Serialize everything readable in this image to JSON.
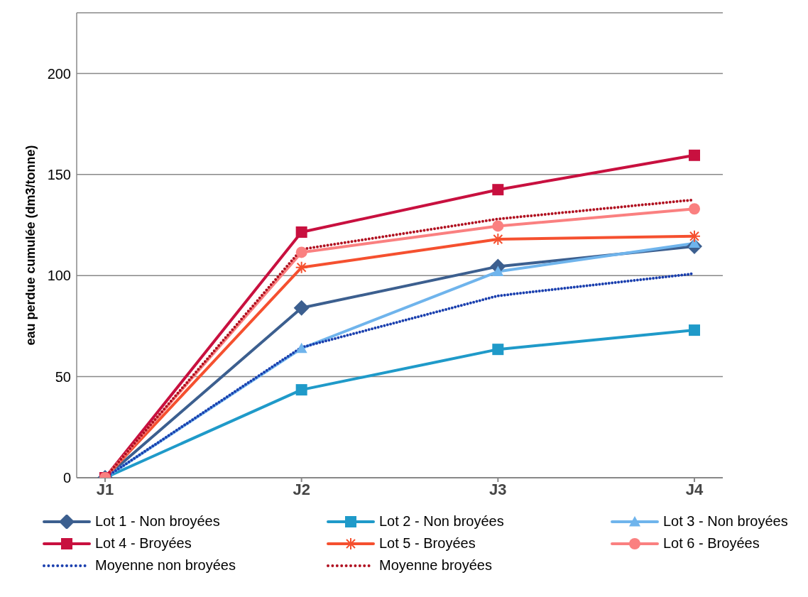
{
  "chart_data": {
    "type": "line",
    "ylabel": "eau perdue cumulée (dm3/tonne)",
    "categories": [
      "J1",
      "J2",
      "J3",
      "J4"
    ],
    "ylim": [
      0,
      230
    ],
    "yticks": [
      0,
      50,
      100,
      150,
      200
    ],
    "grid": "y",
    "legend": "bottom",
    "series": [
      {
        "name": "Lot 1 - Non broyées",
        "color": "#3c5f8f",
        "marker": "diamond",
        "values": [
          0,
          84,
          104.5,
          114.5
        ]
      },
      {
        "name": "Lot 2 - Non broyées",
        "color": "#1f9ac9",
        "marker": "square",
        "values": [
          0,
          43.5,
          63.5,
          73
        ]
      },
      {
        "name": "Lot 3 - Non broyées",
        "color": "#6fb4ec",
        "marker": "triangle",
        "values": [
          0,
          64,
          102,
          116
        ]
      },
      {
        "name": "Lot 4 - Broyées",
        "color": "#c8103f",
        "marker": "square",
        "values": [
          0,
          121.5,
          142.5,
          159.5
        ]
      },
      {
        "name": "Lot 5 - Broyées",
        "color": "#f5502f",
        "marker": "cross",
        "values": [
          0,
          104,
          118,
          119.5
        ]
      },
      {
        "name": "Lot 6 - Broyées",
        "color": "#fa8080",
        "marker": "circle",
        "values": [
          0,
          111.5,
          124.5,
          133
        ]
      },
      {
        "name": "Moyenne non broyées",
        "color": "#1a3fae",
        "marker": "none",
        "line_style": "dotted",
        "values": [
          0,
          64.5,
          90,
          101
        ]
      },
      {
        "name": "Moyenne broyées",
        "color": "#b01020",
        "marker": "none",
        "line_style": "dotted",
        "values": [
          0,
          113,
          128,
          137.5
        ]
      }
    ]
  }
}
